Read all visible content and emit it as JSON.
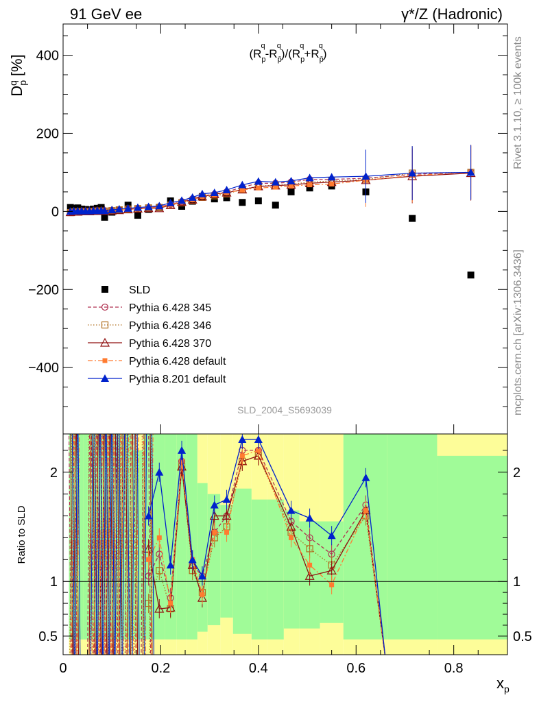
{
  "header": {
    "left_label": "91 GeV ee",
    "right_label": "γ*/Z (Hadronic)",
    "side_label_top": "Rivet 3.1.10, ≥ 100k events",
    "side_label_bottom": "mcplots.cern.ch [arXiv:1306.3436]",
    "analysis_id": "SLD_2004_S5693039",
    "formula": "(R^q_p - R^q_p̄)/(R^q_p + R^q_p̄)"
  },
  "chart_data": [
    {
      "type": "scatter",
      "panel": "main",
      "ylabel": "D^q_p [%]",
      "xlim": [
        0,
        0.91
      ],
      "ylim": [
        -570,
        480
      ],
      "yticks": [
        -400,
        -200,
        0,
        200,
        400
      ],
      "ytick_labels": [
        "−400",
        "−200",
        "0",
        "200",
        "400"
      ],
      "legend_placement": "left-middle",
      "x": [
        0.015,
        0.022,
        0.03,
        0.038,
        0.046,
        0.054,
        0.062,
        0.07,
        0.078,
        0.085,
        0.1,
        0.115,
        0.133,
        0.153,
        0.175,
        0.197,
        0.22,
        0.243,
        0.265,
        0.285,
        0.31,
        0.335,
        0.367,
        0.4,
        0.435,
        0.467,
        0.505,
        0.55,
        0.62,
        0.715,
        0.835
      ],
      "series": [
        {
          "name": "SLD",
          "color": "#000000",
          "marker": "filled-square",
          "line": "none",
          "values": [
            10,
            8,
            9,
            6,
            5,
            4,
            6,
            8,
            10,
            -15,
            -2,
            3,
            16,
            -10,
            5,
            10,
            27,
            13,
            26,
            38,
            32,
            35,
            23,
            27,
            16,
            50,
            60,
            65,
            50,
            -18,
            -163
          ]
        },
        {
          "name": "Pythia 6.428 345",
          "color": "#b03050",
          "marker": "open-circle",
          "line": "dashed",
          "values": [
            -2,
            0,
            0,
            0,
            0,
            0,
            0,
            2,
            1,
            1,
            3,
            4,
            7,
            8,
            10,
            12,
            18,
            25,
            32,
            40,
            44,
            50,
            62,
            72,
            72,
            75,
            82,
            82,
            85,
            95,
            100
          ]
        },
        {
          "name": "Pythia 6.428 346",
          "color": "#b07020",
          "marker": "open-square",
          "line": "dotted",
          "values": [
            -3,
            -1,
            -1,
            0,
            0,
            0,
            0,
            1,
            1,
            1,
            2,
            4,
            6,
            7,
            9,
            10,
            16,
            22,
            28,
            36,
            40,
            45,
            56,
            65,
            67,
            70,
            75,
            78,
            82,
            98,
            100
          ]
        },
        {
          "name": "Pythia 6.428 370",
          "color": "#901010",
          "marker": "open-triangle",
          "line": "solid",
          "values": [
            -2,
            -1,
            -1,
            0,
            0,
            0,
            1,
            1,
            1,
            1,
            2,
            3,
            5,
            7,
            8,
            8,
            16,
            24,
            30,
            38,
            44,
            48,
            56,
            64,
            66,
            68,
            72,
            75,
            80,
            90,
            98
          ]
        },
        {
          "name": "Pythia 6.428 default",
          "color": "#ff7b30",
          "marker": "filled-square-small",
          "line": "dash-dot",
          "values": [
            -2,
            0,
            0,
            0,
            0,
            0,
            1,
            1,
            1,
            1,
            2,
            3,
            5,
            7,
            9,
            10,
            17,
            24,
            30,
            38,
            42,
            48,
            55,
            60,
            62,
            65,
            68,
            70,
            80,
            92,
            100
          ]
        },
        {
          "name": "Pythia 8.201 default",
          "color": "#0022cc",
          "marker": "filled-triangle",
          "line": "solid",
          "values": [
            0,
            1,
            1,
            1,
            1,
            1,
            2,
            2,
            2,
            2,
            4,
            6,
            8,
            10,
            12,
            14,
            22,
            28,
            36,
            45,
            48,
            55,
            68,
            77,
            75,
            78,
            86,
            88,
            90,
            98,
            100
          ]
        }
      ]
    },
    {
      "type": "scatter",
      "panel": "ratio",
      "ylabel": "Ratio to SLD",
      "xlabel": "x_p",
      "xlim": [
        0,
        0.91
      ],
      "ylim": [
        0.33,
        2.35
      ],
      "yticks": [
        0.5,
        1,
        2
      ],
      "ytick_labels": [
        "0.5",
        "1",
        "2"
      ],
      "xticks": [
        0,
        0.2,
        0.4,
        0.6,
        0.8
      ],
      "xtick_labels": [
        "0",
        "0.2",
        "0.4",
        "0.6",
        "0.8"
      ],
      "reference_line": 1,
      "band_colors": {
        "one_sigma": "#a0fb98",
        "two_sigma": "#fdfd99"
      },
      "x": [
        0.175,
        0.197,
        0.22,
        0.243,
        0.265,
        0.285,
        0.31,
        0.335,
        0.367,
        0.4,
        0.467,
        0.505,
        0.55,
        0.62
      ],
      "series": [
        {
          "name": "Pythia 6.428 345",
          "color": "#b03050",
          "marker": "open-circle",
          "line": "dashed",
          "values": [
            1.05,
            1.25,
            0.85,
            2.1,
            1.15,
            1.05,
            1.45,
            1.6,
            2.2,
            2.2,
            1.55,
            1.4,
            1.25,
            1.7
          ]
        },
        {
          "name": "Pythia 6.428 346",
          "color": "#b07020",
          "marker": "open-square",
          "line": "dotted",
          "values": [
            0.8,
            1.1,
            0.75,
            2.05,
            1.1,
            0.9,
            1.4,
            1.5,
            2.1,
            2.15,
            1.45,
            1.3,
            1.15,
            1.6
          ]
        },
        {
          "name": "Pythia 6.428 370",
          "color": "#901010",
          "marker": "open-triangle",
          "line": "solid",
          "values": [
            1.3,
            0.75,
            0.76,
            2.05,
            1.15,
            0.85,
            1.6,
            1.6,
            2.1,
            2.15,
            1.5,
            1.05,
            1.1,
            1.65
          ]
        },
        {
          "name": "Pythia 6.428 default",
          "color": "#ff7b30",
          "marker": "filled-square-small",
          "line": "dash-dot",
          "values": [
            1.2,
            1.4,
            0.8,
            2.1,
            1.2,
            0.88,
            1.45,
            1.45,
            2.15,
            2.2,
            1.4,
            1.15,
            0.97,
            1.65
          ]
        },
        {
          "name": "Pythia 8.201 default",
          "color": "#0022cc",
          "marker": "filled-triangle",
          "line": "solid",
          "values": [
            1.6,
            2.0,
            1.15,
            2.2,
            1.2,
            1.05,
            1.7,
            1.75,
            2.3,
            2.3,
            1.65,
            1.58,
            1.42,
            1.95
          ]
        }
      ]
    }
  ]
}
